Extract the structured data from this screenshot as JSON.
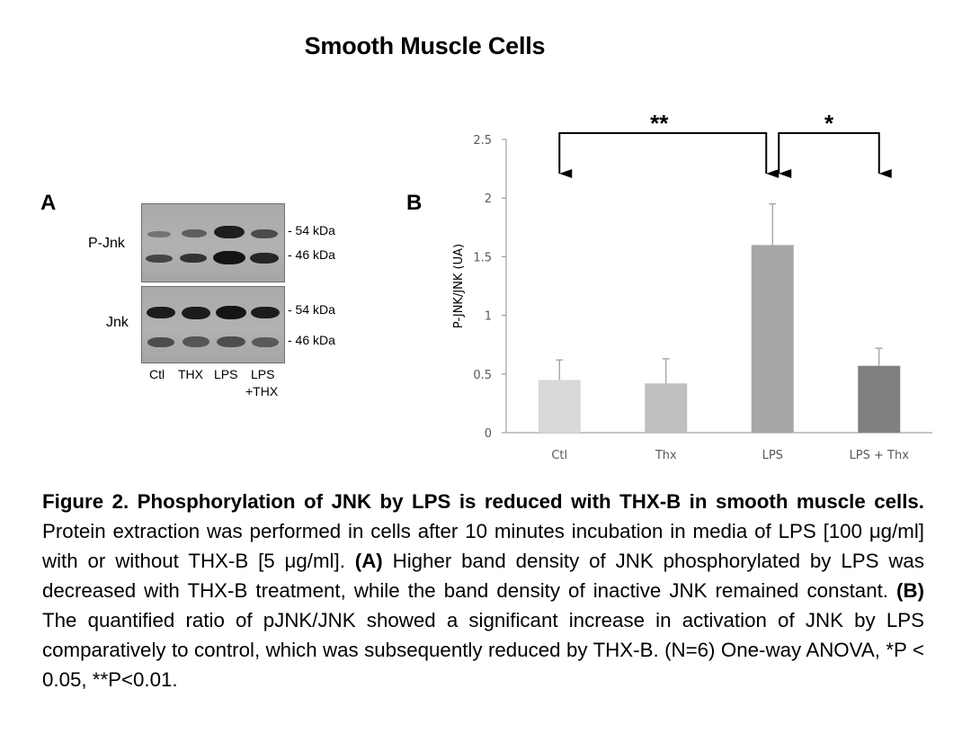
{
  "title": "Smooth Muscle Cells",
  "panel_a": {
    "letter": "A",
    "row_labels": [
      "P-Jnk",
      "Jnk"
    ],
    "kda_labels": [
      "- 54 kDa",
      "- 46 kDa",
      "- 54 kDa",
      "- 46 kDa"
    ],
    "lanes": [
      "Ctl",
      "THX",
      "LPS",
      "LPS",
      "+THX"
    ]
  },
  "panel_b": {
    "letter": "B"
  },
  "chart_data": {
    "type": "bar",
    "categories": [
      "Ctl",
      "Thx",
      "LPS",
      "LPS + Thx"
    ],
    "values": [
      0.45,
      0.42,
      1.6,
      0.57
    ],
    "error_bars": [
      0.17,
      0.21,
      0.35,
      0.15
    ],
    "bar_colors": [
      "#d9d9d9",
      "#bfbfbf",
      "#a6a6a6",
      "#808080"
    ],
    "xlabel": "",
    "ylabel": "P-JNK/JNK (UA)",
    "ylim": [
      0,
      2.5
    ],
    "yticks": [
      0,
      0.5,
      1,
      1.5,
      2,
      2.5
    ],
    "ytick_labels": [
      "0",
      "0.5",
      "1",
      "1.5",
      "2",
      "2.5"
    ],
    "grid": false,
    "significance": [
      {
        "from": "Ctl",
        "to": "LPS",
        "label": "**"
      },
      {
        "from": "LPS",
        "to": "LPS + Thx",
        "label": "*"
      }
    ]
  },
  "caption": {
    "fig_label": "Figure 2. Phosphorylation of JNK by LPS is reduced with THX-B in smooth muscle cells.",
    "text1": " Protein extraction was performed in cells after 10 minutes incubation in media of LPS [100 μg/ml] with or without THX-B [5 μg/ml]. ",
    "a_label": "(A)",
    "text2": " Higher band density of JNK phosphorylated by LPS was decreased with THX-B treatment, while the band density of inactive JNK remained constant. ",
    "b_label": "(B)",
    "text3": " The quantified ratio of pJNK/JNK showed a significant increase in activation of JNK by LPS comparatively to control, which was subsequently reduced by THX-B. (N=6) One-way ANOVA, *P < 0.05, **P<0.01."
  }
}
